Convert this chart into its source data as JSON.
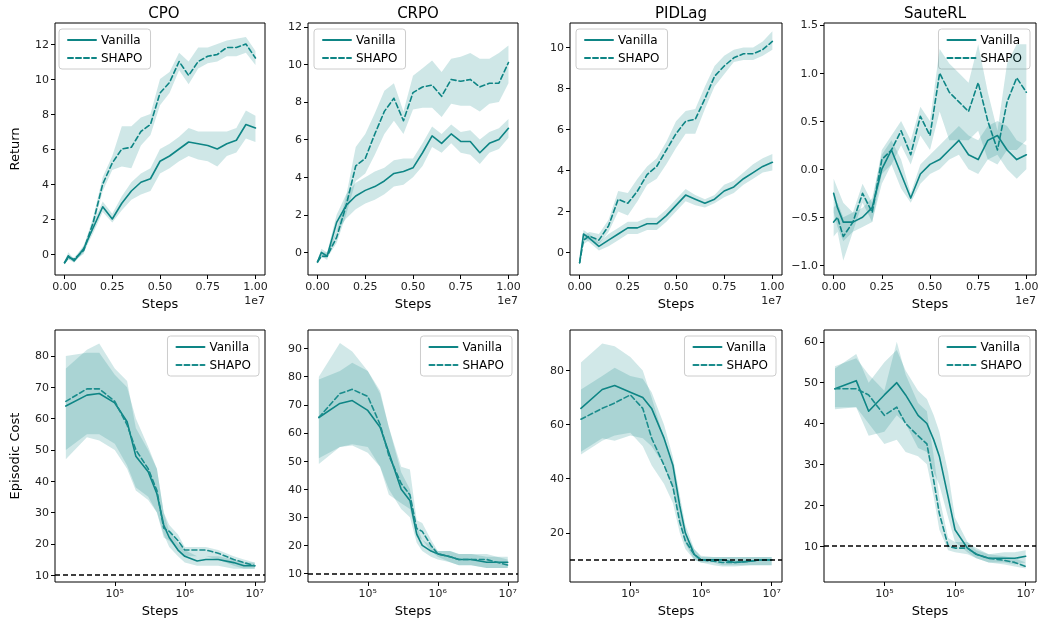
{
  "chart_data": [
    {
      "type": "line",
      "title": "CPO",
      "xlabel": "Steps",
      "ylabel": "Return",
      "annotations": [
        "1e7"
      ],
      "legend": "top left",
      "xlim": [
        -0.05,
        1.05
      ],
      "xticks": [
        {
          "value": 0,
          "label": "0.00"
        },
        {
          "value": 0.25,
          "label": "0.25"
        },
        {
          "value": 0.5,
          "label": "0.50"
        },
        {
          "value": 0.75,
          "label": "0.75"
        },
        {
          "value": 1,
          "label": "1.00"
        }
      ],
      "ylim": [
        -1.2,
        13.2
      ],
      "yticks": [
        0,
        2,
        4,
        6,
        8,
        10,
        12
      ],
      "x": [
        0,
        0.02,
        0.05,
        0.1,
        0.15,
        0.2,
        0.25,
        0.3,
        0.35,
        0.4,
        0.45,
        0.5,
        0.55,
        0.6,
        0.65,
        0.7,
        0.75,
        0.8,
        0.85,
        0.9,
        0.95,
        1.0
      ],
      "series": [
        {
          "name": "Vanilla",
          "color": "#0e8585",
          "line_style": "solid",
          "values": [
            -0.5,
            -0.1,
            -0.4,
            0.3,
            1.5,
            2.7,
            2.0,
            2.9,
            3.6,
            4.1,
            4.3,
            5.3,
            5.6,
            6.0,
            6.4,
            6.3,
            6.2,
            6.0,
            6.3,
            6.5,
            7.4,
            7.2
          ],
          "lower": [
            -0.6,
            -0.3,
            -0.5,
            0.1,
            1.2,
            2.4,
            1.8,
            2.5,
            3.1,
            3.4,
            3.6,
            4.6,
            4.9,
            5.3,
            5.6,
            5.4,
            5.3,
            5.0,
            5.6,
            5.8,
            6.6,
            6.4
          ],
          "upper": [
            -0.4,
            0.1,
            -0.3,
            0.5,
            1.8,
            3.0,
            2.3,
            3.3,
            4.1,
            4.6,
            4.9,
            6.0,
            6.3,
            6.7,
            7.2,
            7.0,
            7.0,
            7.0,
            7.0,
            7.2,
            8.2,
            7.9
          ]
        },
        {
          "name": "SHAPO",
          "color": "#0e8585",
          "line_style": "dashed",
          "values": [
            -0.5,
            -0.2,
            -0.3,
            0.2,
            1.8,
            4.0,
            5.2,
            6.0,
            6.1,
            7.0,
            7.4,
            9.2,
            9.8,
            11.0,
            10.2,
            11.0,
            11.3,
            11.4,
            11.8,
            11.8,
            12.0,
            11.2
          ],
          "lower": [
            -0.6,
            -0.3,
            -0.4,
            0.0,
            1.5,
            3.6,
            4.8,
            5.0,
            4.9,
            6.2,
            6.8,
            8.5,
            9.2,
            10.5,
            9.7,
            10.6,
            10.9,
            11.0,
            11.3,
            11.3,
            11.5,
            10.8
          ],
          "upper": [
            -0.4,
            -0.1,
            -0.2,
            0.4,
            2.1,
            4.4,
            5.6,
            7.3,
            7.3,
            7.8,
            8.0,
            10.0,
            10.4,
            11.5,
            11.0,
            11.8,
            11.8,
            12.0,
            12.2,
            12.3,
            12.4,
            11.6
          ]
        }
      ]
    },
    {
      "type": "line",
      "title": "CRPO",
      "xlabel": "Steps",
      "annotations": [
        "1e7"
      ],
      "legend": "top left",
      "xlim": [
        -0.05,
        1.05
      ],
      "xticks": [
        {
          "value": 0,
          "label": "0.00"
        },
        {
          "value": 0.25,
          "label": "0.25"
        },
        {
          "value": 0.5,
          "label": "0.50"
        },
        {
          "value": 0.75,
          "label": "0.75"
        },
        {
          "value": 1,
          "label": "1.00"
        }
      ],
      "ylim": [
        -1.2,
        12.2
      ],
      "yticks": [
        0,
        2,
        4,
        6,
        8,
        10,
        12
      ],
      "x": [
        0,
        0.02,
        0.05,
        0.1,
        0.15,
        0.2,
        0.25,
        0.3,
        0.35,
        0.4,
        0.45,
        0.5,
        0.55,
        0.6,
        0.65,
        0.7,
        0.75,
        0.8,
        0.85,
        0.9,
        0.95,
        1.0
      ],
      "series": [
        {
          "name": "Vanilla",
          "color": "#0e8585",
          "line_style": "solid",
          "values": [
            -0.5,
            0.0,
            -0.2,
            1.6,
            2.5,
            3.0,
            3.3,
            3.5,
            3.8,
            4.2,
            4.3,
            4.5,
            5.3,
            6.2,
            5.8,
            6.3,
            5.9,
            5.9,
            5.3,
            5.8,
            6.0,
            6.6
          ],
          "lower": [
            -0.6,
            -0.2,
            -0.4,
            1.1,
            1.8,
            2.3,
            2.6,
            2.8,
            3.1,
            3.5,
            3.6,
            4.0,
            4.6,
            5.6,
            5.3,
            5.8,
            5.3,
            5.2,
            4.7,
            5.3,
            5.5,
            6.1
          ],
          "upper": [
            -0.4,
            0.2,
            0.0,
            2.0,
            3.1,
            3.7,
            4.0,
            4.3,
            4.5,
            4.9,
            5.0,
            5.0,
            5.8,
            6.7,
            6.3,
            6.8,
            6.4,
            6.5,
            6.0,
            6.4,
            6.6,
            7.1
          ]
        },
        {
          "name": "SHAPO",
          "color": "#0e8585",
          "line_style": "dashed",
          "values": [
            -0.5,
            -0.2,
            -0.2,
            0.8,
            2.5,
            4.6,
            5.0,
            6.3,
            7.5,
            8.2,
            7.0,
            8.5,
            8.8,
            8.9,
            8.3,
            9.2,
            9.1,
            9.2,
            8.8,
            9.0,
            9.0,
            10.1
          ],
          "lower": [
            -0.6,
            -0.3,
            -0.3,
            0.5,
            2.0,
            3.8,
            4.2,
            5.2,
            6.3,
            7.0,
            6.3,
            7.6,
            7.7,
            7.7,
            7.2,
            7.9,
            7.8,
            7.8,
            7.5,
            7.9,
            8.0,
            9.0
          ],
          "upper": [
            -0.4,
            0.0,
            0.0,
            1.1,
            3.0,
            5.6,
            6.3,
            7.4,
            8.6,
            9.0,
            7.5,
            9.4,
            9.8,
            10.2,
            9.6,
            10.3,
            10.4,
            10.6,
            10.3,
            10.3,
            10.6,
            11.0
          ]
        }
      ]
    },
    {
      "type": "line",
      "title": "PIDLag",
      "xlabel": "Steps",
      "annotations": [
        "1e7"
      ],
      "legend": "top left",
      "xlim": [
        -0.05,
        1.05
      ],
      "xticks": [
        {
          "value": 0,
          "label": "0.00"
        },
        {
          "value": 0.25,
          "label": "0.25"
        },
        {
          "value": 0.5,
          "label": "0.50"
        },
        {
          "value": 0.75,
          "label": "0.75"
        },
        {
          "value": 1,
          "label": "1.00"
        }
      ],
      "ylim": [
        -1.1,
        11.2
      ],
      "yticks": [
        0,
        2,
        4,
        6,
        8,
        10
      ],
      "x": [
        0,
        0.02,
        0.05,
        0.1,
        0.15,
        0.2,
        0.25,
        0.3,
        0.35,
        0.4,
        0.45,
        0.5,
        0.55,
        0.6,
        0.65,
        0.7,
        0.75,
        0.8,
        0.85,
        0.9,
        0.95,
        1.0
      ],
      "series": [
        {
          "name": "Vanilla",
          "color": "#0e8585",
          "line_style": "solid",
          "values": [
            -0.5,
            0.9,
            0.7,
            0.3,
            0.6,
            0.9,
            1.2,
            1.2,
            1.4,
            1.4,
            1.8,
            2.3,
            2.8,
            2.6,
            2.4,
            2.6,
            3.0,
            3.2,
            3.6,
            3.9,
            4.2,
            4.4
          ],
          "lower": [
            -0.6,
            0.7,
            0.5,
            0.1,
            0.3,
            0.6,
            0.9,
            0.9,
            1.1,
            1.1,
            1.5,
            2.0,
            2.5,
            2.3,
            2.2,
            2.4,
            2.7,
            2.9,
            3.3,
            3.6,
            3.9,
            4.0
          ],
          "upper": [
            -0.4,
            1.1,
            0.9,
            0.5,
            0.9,
            1.2,
            1.5,
            1.5,
            1.7,
            1.7,
            2.1,
            2.6,
            3.1,
            2.8,
            2.6,
            2.8,
            3.3,
            3.5,
            3.9,
            4.3,
            4.6,
            4.8
          ]
        },
        {
          "name": "SHAPO",
          "color": "#0e8585",
          "line_style": "dashed",
          "values": [
            -0.5,
            0.6,
            0.8,
            0.6,
            1.3,
            2.6,
            2.4,
            3.0,
            3.8,
            4.2,
            5.0,
            5.8,
            6.4,
            6.5,
            7.5,
            8.6,
            9.1,
            9.5,
            9.7,
            9.7,
            9.9,
            10.3
          ],
          "lower": [
            -0.6,
            0.4,
            0.6,
            0.4,
            1.0,
            2.0,
            1.8,
            2.5,
            3.3,
            3.6,
            4.3,
            5.1,
            5.8,
            5.8,
            7.0,
            8.1,
            8.7,
            9.3,
            9.4,
            9.4,
            9.6,
            9.9
          ],
          "upper": [
            -0.4,
            0.8,
            1.0,
            0.9,
            1.6,
            3.0,
            2.9,
            3.6,
            4.2,
            4.6,
            5.4,
            6.4,
            6.9,
            7.0,
            8.1,
            9.1,
            9.6,
            9.9,
            10.0,
            10.0,
            10.3,
            10.8
          ]
        }
      ]
    },
    {
      "type": "line",
      "title": "SauteRL",
      "xlabel": "Steps",
      "annotations": [
        "1e7"
      ],
      "legend": "top right",
      "xlim": [
        -0.05,
        1.05
      ],
      "xticks": [
        {
          "value": 0,
          "label": "0.00"
        },
        {
          "value": 0.25,
          "label": "0.25"
        },
        {
          "value": 0.5,
          "label": "0.50"
        },
        {
          "value": 0.75,
          "label": "0.75"
        },
        {
          "value": 1,
          "label": "1.00"
        }
      ],
      "ylim": [
        -1.1,
        1.52
      ],
      "yticks": [
        {
          "value": -1,
          "label": "−1.0"
        },
        {
          "value": -0.5,
          "label": "−0.5"
        },
        {
          "value": 0,
          "label": "0.0"
        },
        {
          "value": 0.5,
          "label": "0.5"
        },
        {
          "value": 1,
          "label": "1.0"
        },
        {
          "value": 1.5,
          "label": "1.5"
        }
      ],
      "x": [
        0,
        0.02,
        0.05,
        0.1,
        0.15,
        0.2,
        0.25,
        0.3,
        0.35,
        0.4,
        0.45,
        0.5,
        0.55,
        0.6,
        0.65,
        0.7,
        0.75,
        0.8,
        0.85,
        0.9,
        0.95,
        1.0
      ],
      "series": [
        {
          "name": "Vanilla",
          "color": "#0e8585",
          "line_style": "solid",
          "values": [
            -0.25,
            -0.4,
            -0.55,
            -0.55,
            -0.5,
            -0.4,
            0.0,
            0.2,
            -0.05,
            -0.3,
            -0.05,
            0.05,
            0.1,
            0.2,
            0.3,
            0.15,
            0.1,
            0.3,
            0.35,
            0.2,
            0.1,
            0.15
          ],
          "lower": [
            -0.45,
            -0.6,
            -0.75,
            -0.65,
            -0.6,
            -0.55,
            -0.15,
            0.05,
            -0.2,
            -0.35,
            -0.15,
            -0.05,
            0.0,
            0.1,
            0.15,
            0.0,
            -0.05,
            0.1,
            0.15,
            0.0,
            -0.1,
            0.0
          ],
          "upper": [
            -0.1,
            -0.2,
            -0.35,
            -0.45,
            -0.4,
            -0.3,
            0.15,
            0.3,
            0.1,
            -0.25,
            0.05,
            0.15,
            0.25,
            0.35,
            0.45,
            0.35,
            0.3,
            0.45,
            0.5,
            0.45,
            0.3,
            0.25
          ]
        },
        {
          "name": "SHAPO",
          "color": "#0e8585",
          "line_style": "dashed",
          "values": [
            -0.55,
            -0.5,
            -0.7,
            -0.55,
            -0.25,
            -0.45,
            0.1,
            0.2,
            0.4,
            0.15,
            0.55,
            0.35,
            1.0,
            0.8,
            0.7,
            0.6,
            0.9,
            0.5,
            0.2,
            0.7,
            0.95,
            0.8
          ],
          "lower": [
            -0.7,
            -0.65,
            -0.95,
            -0.65,
            -0.35,
            -0.55,
            -0.05,
            0.05,
            0.25,
            0.05,
            0.35,
            0.2,
            0.6,
            0.3,
            0.3,
            0.3,
            0.4,
            0.1,
            0.05,
            0.2,
            0.2,
            0.3
          ],
          "upper": [
            -0.4,
            -0.35,
            -0.5,
            -0.45,
            -0.15,
            -0.35,
            0.2,
            0.35,
            0.5,
            0.3,
            0.65,
            0.5,
            1.25,
            1.1,
            1.0,
            0.9,
            1.3,
            0.8,
            0.4,
            1.1,
            1.3,
            1.3
          ]
        }
      ]
    },
    {
      "type": "line",
      "xlabel": "Steps",
      "ylabel": "Episodic Cost",
      "legend": "top right",
      "log": "x",
      "xlim": [
        14000,
        14000000
      ],
      "xticks": [
        {
          "value": 100000,
          "label": "10⁵"
        },
        {
          "value": 1000000,
          "label": "10⁶"
        },
        {
          "value": 10000000,
          "label": "10⁷"
        }
      ],
      "ylim": [
        7.8,
        88.3
      ],
      "yticks": [
        10,
        20,
        30,
        40,
        50,
        60,
        70,
        80
      ],
      "ref_lines": [
        {
          "axis": "y",
          "value": 10,
          "color": "#000000",
          "line_style": "dashed"
        }
      ],
      "x": [
        20000,
        40000,
        60000,
        100000,
        150000,
        200000,
        300000,
        400000,
        500000,
        600000,
        800000,
        1000000,
        1500000,
        2000000,
        3000000,
        5000000,
        7000000,
        10000000
      ],
      "series": [
        {
          "name": "Vanilla",
          "color": "#0e8585",
          "line_style": "solid",
          "values": [
            64,
            67.5,
            68,
            65,
            59,
            48,
            43,
            36,
            26,
            22,
            18,
            16,
            14.5,
            15,
            15,
            14,
            13,
            13
          ],
          "lower": [
            47,
            54,
            53,
            50,
            44,
            37,
            34,
            30,
            23,
            19,
            16,
            14,
            13,
            13,
            13,
            12,
            12,
            12
          ],
          "upper": [
            80,
            81,
            81,
            74,
            70,
            60,
            51,
            44,
            30,
            24,
            20,
            18,
            16,
            16,
            16,
            15,
            14,
            14
          ]
        },
        {
          "name": "SHAPO",
          "color": "#1a8c8c",
          "line_style": "dashed",
          "values": [
            65.5,
            69.5,
            69.5,
            65.5,
            58,
            50,
            44,
            37,
            25,
            24,
            21,
            18,
            18,
            18,
            17,
            15,
            14,
            13
          ],
          "lower": [
            50,
            55,
            55,
            52,
            45,
            38,
            35,
            30,
            22,
            21,
            18,
            16,
            16,
            16,
            15,
            13,
            12,
            12
          ],
          "upper": [
            76,
            82,
            84,
            76,
            72,
            57,
            50,
            44,
            30,
            26,
            23,
            19,
            19,
            19,
            18,
            16,
            15,
            14
          ]
        }
      ]
    },
    {
      "type": "line",
      "xlabel": "Steps",
      "legend": "top right",
      "log": "x",
      "xlim": [
        14000,
        14000000
      ],
      "xticks": [
        {
          "value": 100000,
          "label": "10⁵"
        },
        {
          "value": 1000000,
          "label": "10⁶"
        },
        {
          "value": 10000000,
          "label": "10⁷"
        }
      ],
      "ylim": [
        7,
        96.6
      ],
      "yticks": [
        10,
        20,
        30,
        40,
        50,
        60,
        70,
        80,
        90
      ],
      "ref_lines": [
        {
          "axis": "y",
          "value": 10,
          "color": "#000000",
          "line_style": "dashed"
        }
      ],
      "x": [
        20000,
        40000,
        60000,
        100000,
        150000,
        200000,
        300000,
        400000,
        500000,
        600000,
        800000,
        1000000,
        1500000,
        2000000,
        3000000,
        5000000,
        7000000,
        10000000
      ],
      "series": [
        {
          "name": "Vanilla",
          "color": "#0e8585",
          "line_style": "solid",
          "values": [
            65.5,
            70.5,
            71.5,
            68,
            62,
            53,
            40,
            36,
            24,
            20,
            18,
            17,
            16,
            15,
            15,
            14,
            14,
            14
          ],
          "lower": [
            51,
            55,
            55.5,
            53,
            48,
            40,
            33,
            30,
            21,
            18,
            16,
            15,
            14,
            13,
            13,
            12,
            12,
            12
          ],
          "upper": [
            79,
            82,
            85,
            82,
            74,
            62,
            46,
            40,
            27,
            22,
            20,
            18,
            18,
            17,
            17,
            16,
            16,
            16
          ]
        },
        {
          "name": "SHAPO",
          "color": "#1a8c8c",
          "line_style": "dashed",
          "values": [
            65.5,
            74,
            75.5,
            73,
            63,
            52,
            42,
            38,
            26,
            25,
            20,
            17,
            16,
            15,
            15,
            15,
            14,
            13
          ],
          "lower": [
            49,
            55,
            56,
            55,
            48,
            38,
            35,
            33,
            23,
            22,
            18,
            16,
            14,
            13,
            13,
            12,
            12,
            12
          ],
          "upper": [
            80,
            92,
            89,
            82,
            75,
            62,
            48,
            47,
            29,
            28,
            22,
            18,
            18,
            17,
            17,
            17,
            16,
            15
          ]
        }
      ]
    },
    {
      "type": "line",
      "xlabel": "Steps",
      "legend": "top right",
      "log": "x",
      "xlim": [
        14000,
        14000000
      ],
      "xticks": [
        {
          "value": 100000,
          "label": "10⁵"
        },
        {
          "value": 1000000,
          "label": "10⁶"
        },
        {
          "value": 10000000,
          "label": "10⁷"
        }
      ],
      "ylim": [
        1.8,
        95
      ],
      "yticks": [
        20,
        40,
        60,
        80
      ],
      "ref_lines": [
        {
          "axis": "y",
          "value": 10,
          "color": "#000000",
          "line_style": "dashed"
        }
      ],
      "x": [
        20000,
        40000,
        60000,
        100000,
        150000,
        200000,
        300000,
        400000,
        500000,
        600000,
        800000,
        1000000,
        1500000,
        2000000,
        3000000,
        5000000,
        7000000,
        10000000
      ],
      "series": [
        {
          "name": "Vanilla",
          "color": "#0e8585",
          "line_style": "solid",
          "values": [
            66,
            73,
            74.5,
            72,
            70,
            66,
            55,
            45,
            30,
            20,
            12,
            10,
            10,
            10,
            9,
            9.5,
            10,
            10
          ],
          "lower": [
            50,
            55,
            54,
            56,
            55,
            52,
            45,
            36,
            24,
            16,
            10,
            9,
            9,
            8,
            8,
            8,
            8,
            8
          ],
          "upper": [
            73,
            78,
            81,
            78,
            77,
            72,
            60,
            48,
            34,
            23,
            14,
            11,
            11,
            11,
            11,
            11,
            11,
            11
          ]
        },
        {
          "name": "SHAPO",
          "color": "#1a8c8c",
          "line_style": "dashed",
          "values": [
            62,
            66,
            68,
            71,
            66,
            55,
            45,
            37,
            24,
            17,
            12,
            10,
            9.5,
            9,
            9,
            9.5,
            10,
            10
          ],
          "lower": [
            49,
            54,
            56,
            57,
            52,
            45,
            38,
            31,
            20,
            14,
            10,
            9,
            8,
            7.5,
            7.5,
            8,
            8,
            8
          ],
          "upper": [
            83,
            90,
            89,
            85,
            80,
            70,
            55,
            45,
            28,
            20,
            14,
            11.5,
            11,
            11,
            11,
            11,
            11,
            11
          ]
        }
      ]
    },
    {
      "type": "line",
      "xlabel": "Steps",
      "legend": "top right",
      "log": "x",
      "xlim": [
        14000,
        14000000
      ],
      "xticks": [
        {
          "value": 100000,
          "label": "10⁵"
        },
        {
          "value": 1000000,
          "label": "10⁶"
        },
        {
          "value": 10000000,
          "label": "10⁷"
        }
      ],
      "ylim": [
        1.2,
        62.9
      ],
      "yticks": [
        10,
        20,
        30,
        40,
        50,
        60
      ],
      "ref_lines": [
        {
          "axis": "y",
          "value": 10,
          "color": "#000000",
          "line_style": "dashed"
        }
      ],
      "x": [
        20000,
        40000,
        60000,
        100000,
        150000,
        200000,
        300000,
        400000,
        500000,
        600000,
        800000,
        1000000,
        1500000,
        2000000,
        3000000,
        5000000,
        7000000,
        10000000
      ],
      "series": [
        {
          "name": "Vanilla",
          "color": "#0e8585",
          "line_style": "solid",
          "values": [
            48.5,
            50.5,
            43,
            47,
            50,
            47,
            42,
            40,
            36,
            32,
            22,
            14,
            9.5,
            8,
            7,
            7,
            7,
            7.5
          ],
          "lower": [
            43.5,
            44,
            37,
            38,
            42,
            40,
            34,
            33,
            28,
            25,
            17,
            11,
            8.5,
            7,
            6,
            6,
            5.5,
            6
          ],
          "upper": [
            53.5,
            57,
            50,
            55,
            58,
            53,
            48,
            46,
            42,
            38,
            28,
            17,
            11,
            9.5,
            8,
            8.5,
            8.5,
            9
          ]
        },
        {
          "name": "SHAPO",
          "color": "#1a8c8c",
          "line_style": "dashed",
          "values": [
            48.5,
            48.5,
            47,
            42,
            44,
            40,
            37,
            35,
            26,
            18,
            10,
            9.5,
            9.5,
            8,
            7,
            6.5,
            6,
            5
          ],
          "lower": [
            44,
            44,
            40,
            35,
            36,
            33,
            32,
            30,
            22,
            14,
            9,
            8.5,
            8,
            7,
            6,
            5.5,
            5,
            4.5
          ],
          "upper": [
            54,
            56,
            52,
            48,
            60,
            52,
            45,
            43,
            32,
            22,
            12,
            11,
            11,
            9,
            8,
            7.5,
            7,
            6
          ]
        }
      ]
    }
  ]
}
